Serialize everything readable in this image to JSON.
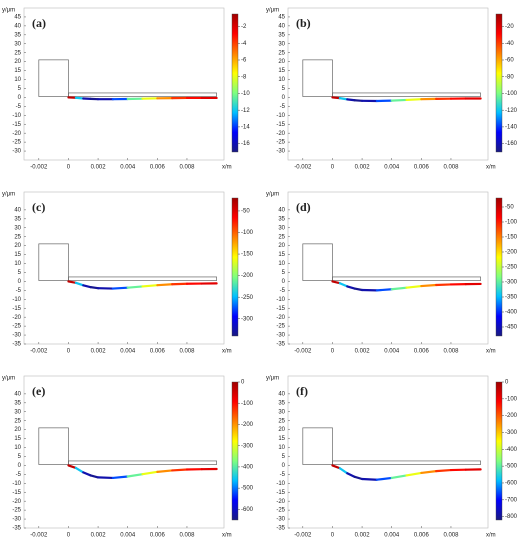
{
  "chart_data": [
    {
      "type": "line",
      "label": "(a)",
      "xlabel": "x/m",
      "ylabel": "y/μm",
      "x": [
        0,
        0.0005,
        0.001,
        0.0015,
        0.002,
        0.003,
        0.004,
        0.005,
        0.006,
        0.007,
        0.008,
        0.009,
        0.01
      ],
      "y": [
        0,
        -0.2,
        -0.6,
        -0.8,
        -1,
        -1,
        -0.9,
        -0.7,
        -0.5,
        -0.4,
        -0.3,
        -0.3,
        -0.3
      ],
      "field": [
        -1.3,
        -12,
        -16.2,
        -16.7,
        -16.2,
        -13.7,
        -10.4,
        -7.9,
        -5.5,
        -3.8,
        -3,
        -2.2,
        -1.8
      ],
      "xlim": [
        -0.003,
        0.0105
      ],
      "ylim": [
        -35,
        50
      ],
      "xticks": [
        -0.002,
        0,
        0.002,
        0.004,
        0.006,
        0.008
      ],
      "yticks": [
        45,
        40,
        35,
        30,
        25,
        20,
        15,
        10,
        5,
        0,
        -5,
        -10,
        -15,
        -20,
        -25,
        -30
      ],
      "clim": [
        -17,
        -0.5
      ],
      "cticks": [
        -2,
        -4,
        -6,
        -8,
        -10,
        -12,
        -14,
        -16
      ],
      "colormap": [
        "#1a1a80",
        "#0000ff",
        "#00bfff",
        "#7fff7f",
        "#ffff00",
        "#ff8000",
        "#ff0000",
        "#a00000"
      ]
    },
    {
      "type": "line",
      "label": "(b)",
      "xlabel": "x/m",
      "ylabel": "y/μm",
      "x": [
        0,
        0.0005,
        0.001,
        0.0015,
        0.002,
        0.003,
        0.004,
        0.005,
        0.006,
        0.007,
        0.008,
        0.009,
        0.01
      ],
      "y": [
        0,
        -0.4,
        -1.1,
        -1.6,
        -1.9,
        -2,
        -1.8,
        -1.4,
        -1,
        -0.8,
        -0.7,
        -0.6,
        -0.6
      ],
      "field": [
        -13,
        -120,
        -162,
        -167,
        -162,
        -137,
        -104,
        -79,
        -55,
        -38,
        -30,
        -22,
        -18
      ],
      "xlim": [
        -0.003,
        0.0105
      ],
      "ylim": [
        -35,
        50
      ],
      "xticks": [
        -0.002,
        0,
        0.002,
        0.004,
        0.006,
        0.008
      ],
      "yticks": [
        45,
        40,
        35,
        30,
        25,
        20,
        15,
        10,
        5,
        0,
        -5,
        -10,
        -15,
        -20,
        -25,
        -30
      ],
      "clim": [
        -170,
        -5
      ],
      "cticks": [
        -20,
        -40,
        -60,
        -80,
        -100,
        -120,
        -140,
        -160
      ],
      "colormap": [
        "#1a1a80",
        "#0000ff",
        "#00bfff",
        "#7fff7f",
        "#ffff00",
        "#ff8000",
        "#ff0000",
        "#a00000"
      ]
    },
    {
      "type": "line",
      "label": "(c)",
      "xlabel": "x/m",
      "ylabel": "y/μm",
      "x": [
        0,
        0.0005,
        0.001,
        0.0015,
        0.002,
        0.003,
        0.004,
        0.005,
        0.006,
        0.007,
        0.008,
        0.009,
        0.01
      ],
      "y": [
        0,
        -0.8,
        -2.2,
        -3.2,
        -3.8,
        -4,
        -3.5,
        -2.8,
        -2.1,
        -1.6,
        -1.3,
        -1.2,
        -1.1
      ],
      "field": [
        -36,
        -244,
        -324,
        -334,
        -324,
        -276,
        -212,
        -164,
        -116,
        -84,
        -68,
        -52,
        -46
      ],
      "xlim": [
        -0.003,
        0.0105
      ],
      "ylim": [
        -35,
        50
      ],
      "xticks": [
        -0.002,
        0,
        0.002,
        0.004,
        0.006,
        0.008
      ],
      "yticks": [
        40,
        35,
        30,
        25,
        20,
        15,
        10,
        5,
        0,
        -5,
        -10,
        -15,
        -20,
        -25,
        -30,
        -35
      ],
      "clim": [
        -340,
        -20
      ],
      "cticks": [
        -50,
        -100,
        -150,
        -200,
        -250,
        -300
      ],
      "colormap": [
        "#1a1a80",
        "#0000ff",
        "#00bfff",
        "#7fff7f",
        "#ffff00",
        "#ff8000",
        "#ff0000",
        "#a00000"
      ]
    },
    {
      "type": "line",
      "label": "(d)",
      "xlabel": "x/m",
      "ylabel": "y/μm",
      "x": [
        0,
        0.0005,
        0.001,
        0.0015,
        0.002,
        0.003,
        0.004,
        0.005,
        0.006,
        0.007,
        0.008,
        0.009,
        0.01
      ],
      "y": [
        0,
        -1,
        -2.8,
        -4,
        -4.8,
        -5,
        -4.4,
        -3.5,
        -2.6,
        -2,
        -1.7,
        -1.5,
        -1.4
      ],
      "field": [
        -43,
        -342,
        -457,
        -471,
        -457,
        -388,
        -296,
        -227,
        -158,
        -112,
        -89,
        -66,
        -57
      ],
      "xlim": [
        -0.003,
        0.0105
      ],
      "ylim": [
        -35,
        50
      ],
      "xticks": [
        -0.002,
        0,
        0.002,
        0.004,
        0.006,
        0.008
      ],
      "yticks": [
        40,
        35,
        30,
        25,
        20,
        15,
        10,
        5,
        0,
        -5,
        -10,
        -15,
        -20,
        -25,
        -30,
        -35
      ],
      "clim": [
        -480,
        -20
      ],
      "cticks": [
        -50,
        -100,
        -150,
        -200,
        -250,
        -300,
        -350,
        -400,
        -450
      ],
      "colormap": [
        "#1a1a80",
        "#0000ff",
        "#00bfff",
        "#7fff7f",
        "#ffff00",
        "#ff8000",
        "#ff0000",
        "#a00000"
      ]
    },
    {
      "type": "line",
      "label": "(e)",
      "xlabel": "x/m",
      "ylabel": "y/μm",
      "x": [
        0,
        0.0005,
        0.001,
        0.0015,
        0.002,
        0.003,
        0.004,
        0.005,
        0.006,
        0.007,
        0.008,
        0.009,
        0.01
      ],
      "y": [
        0,
        -1.4,
        -3.9,
        -5.6,
        -6.7,
        -7,
        -6.2,
        -4.9,
        -3.6,
        -2.8,
        -2.3,
        -2.1,
        -2
      ],
      "field": [
        -33,
        -455,
        -618,
        -637,
        -618,
        -520,
        -390,
        -293,
        -195,
        -130,
        -98,
        -65,
        -52
      ],
      "xlim": [
        -0.003,
        0.0105
      ],
      "ylim": [
        -35,
        50
      ],
      "xticks": [
        -0.002,
        0,
        0.002,
        0.004,
        0.006,
        0.008
      ],
      "yticks": [
        40,
        35,
        30,
        25,
        20,
        15,
        10,
        5,
        0,
        -5,
        -10,
        -15,
        -20,
        -25,
        -30,
        -35
      ],
      "clim": [
        -650,
        0
      ],
      "cticks": [
        0,
        -100,
        -200,
        -300,
        -400,
        -500,
        -600
      ],
      "colormap": [
        "#1a1a80",
        "#0000ff",
        "#00bfff",
        "#7fff7f",
        "#ffff00",
        "#ff8000",
        "#ff0000",
        "#a00000"
      ]
    },
    {
      "type": "line",
      "label": "(f)",
      "xlabel": "x/m",
      "ylabel": "y/μm",
      "x": [
        0,
        0.0005,
        0.001,
        0.0015,
        0.002,
        0.003,
        0.004,
        0.005,
        0.006,
        0.007,
        0.008,
        0.009,
        0.01
      ],
      "y": [
        0,
        -1.6,
        -4.4,
        -6.4,
        -7.6,
        -8,
        -7,
        -5.6,
        -4.2,
        -3.2,
        -2.6,
        -2.4,
        -2.2
      ],
      "field": [
        -41,
        -574,
        -779,
        -804,
        -779,
        -656,
        -492,
        -369,
        -246,
        -164,
        -123,
        -82,
        -66
      ],
      "xlim": [
        -0.003,
        0.0105
      ],
      "ylim": [
        -35,
        50
      ],
      "xticks": [
        -0.002,
        0,
        0.002,
        0.004,
        0.006,
        0.008
      ],
      "yticks": [
        40,
        35,
        30,
        25,
        20,
        15,
        10,
        5,
        0,
        -5,
        -10,
        -15,
        -20,
        -25,
        -30,
        -35
      ],
      "clim": [
        -820,
        0
      ],
      "cticks": [
        0,
        -100,
        -200,
        -300,
        -400,
        -500,
        -600,
        -700,
        -800
      ],
      "colormap": [
        "#1a1a80",
        "#0000ff",
        "#00bfff",
        "#7fff7f",
        "#ffff00",
        "#ff8000",
        "#ff0000",
        "#a00000"
      ]
    }
  ]
}
